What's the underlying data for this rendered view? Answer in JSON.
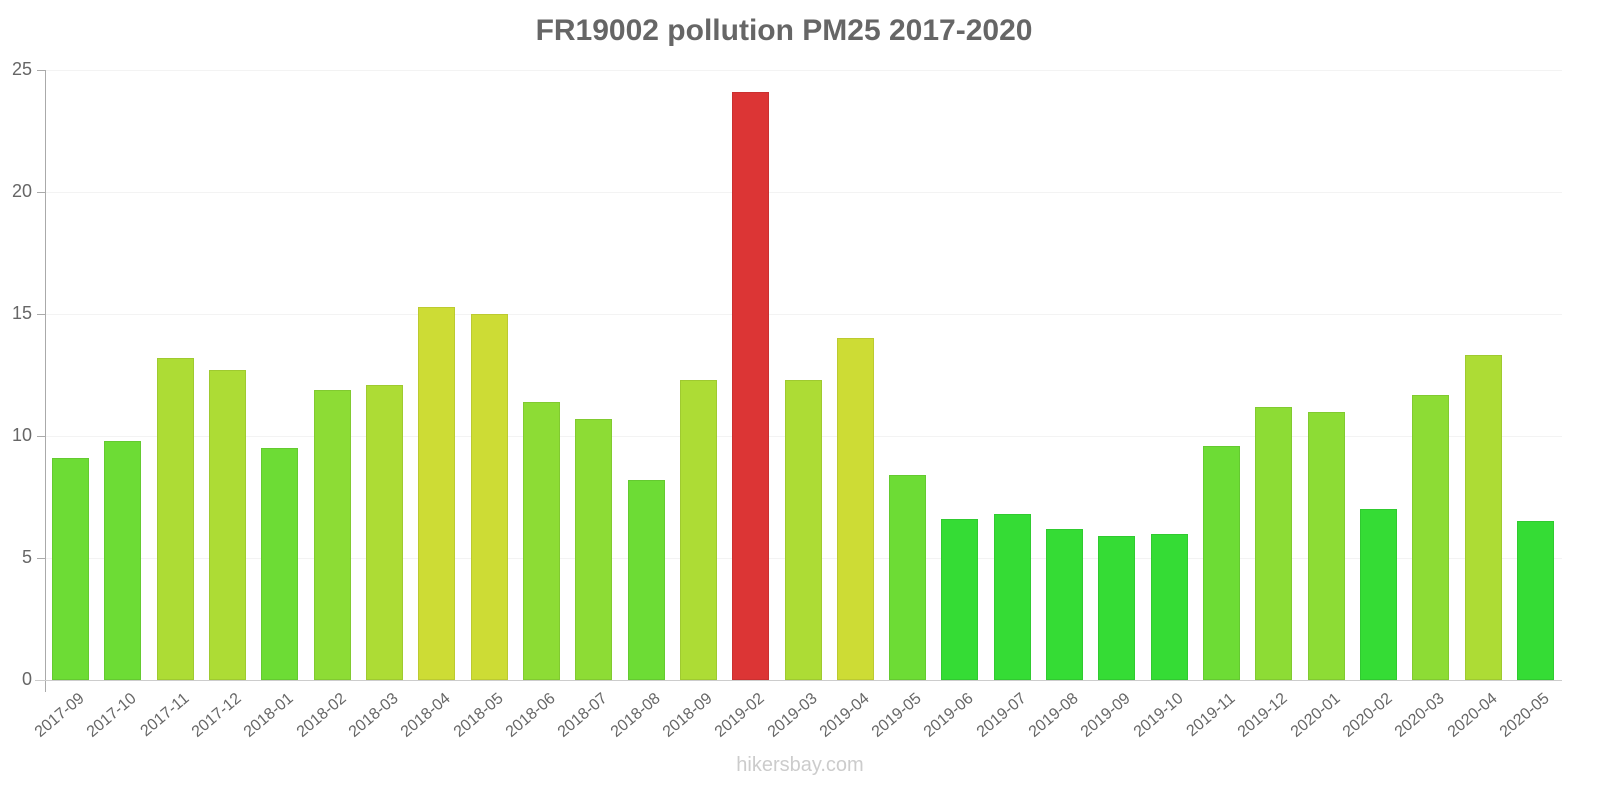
{
  "chart_data": {
    "type": "bar",
    "title": "FR19002 pollution PM25 2017-2020",
    "xlabel": "",
    "ylabel": "",
    "ylim": [
      0,
      25
    ],
    "yticks": [
      0,
      5,
      10,
      15,
      20,
      25
    ],
    "grid": true,
    "legend": null,
    "categories": [
      "2017-09",
      "2017-10",
      "2017-11",
      "2017-12",
      "2018-01",
      "2018-02",
      "2018-03",
      "2018-04",
      "2018-05",
      "2018-06",
      "2018-07",
      "2018-08",
      "2018-09",
      "2019-02",
      "2019-03",
      "2019-04",
      "2019-05",
      "2019-06",
      "2019-07",
      "2019-08",
      "2019-09",
      "2019-10",
      "2019-11",
      "2019-12",
      "2020-01",
      "2020-02",
      "2020-03",
      "2020-04",
      "2020-05"
    ],
    "values": [
      9.1,
      9.8,
      13.2,
      12.7,
      9.5,
      11.9,
      12.1,
      15.3,
      15.0,
      11.4,
      10.7,
      8.2,
      12.3,
      24.1,
      12.3,
      14.0,
      8.4,
      6.6,
      6.8,
      6.2,
      5.9,
      6.0,
      9.6,
      11.2,
      11.0,
      7.0,
      11.7,
      13.3,
      6.5
    ],
    "colors": [
      "#6ddc35",
      "#6ddc35",
      "#addc35",
      "#addc35",
      "#6ddc35",
      "#8ddc35",
      "#addc35",
      "#cddc35",
      "#cddc35",
      "#8ddc35",
      "#8ddc35",
      "#6ddc35",
      "#addc35",
      "#dc3535",
      "#addc35",
      "#cddc35",
      "#6ddc35",
      "#35dc35",
      "#35dc35",
      "#35dc35",
      "#35dc35",
      "#35dc35",
      "#6ddc35",
      "#8ddc35",
      "#8ddc35",
      "#35dc35",
      "#8ddc35",
      "#addc35",
      "#35dc35"
    ]
  },
  "watermark": "hikersbay.com"
}
